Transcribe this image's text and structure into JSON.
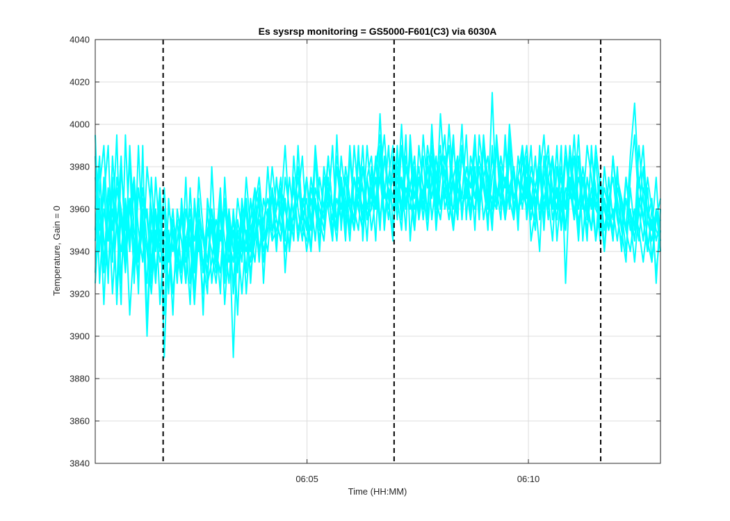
{
  "chart_data": {
    "type": "line",
    "title": "Es sysrsp monitoring = GS5000-F601(C3) via 6030A",
    "xlabel": "Time (HH:MM)",
    "ylabel": "Temperature, Gain = 0",
    "ylim": [
      3840,
      4040
    ],
    "yticks": [
      3840,
      3860,
      3880,
      3900,
      3920,
      3940,
      3960,
      3980,
      4000,
      4020,
      4040
    ],
    "xlim": [
      "06:00:13",
      "06:12:59"
    ],
    "xticks": [
      {
        "value": "06:05:00",
        "label": "06:05"
      },
      {
        "value": "06:10:00",
        "label": "06:10"
      }
    ],
    "grid": true,
    "series_color": "#00ffff",
    "vertical_markers": {
      "style": "dashed",
      "color": "#000000",
      "x": [
        "06:01:45",
        "06:06:58",
        "06:11:38"
      ]
    },
    "series_count": 8,
    "series": [
      {
        "values": [
          3995,
          3940,
          3975,
          3925,
          3985,
          3955,
          3915,
          3995,
          3945,
          3970,
          3920,
          3990,
          3905,
          3960,
          3930,
          3950,
          3910,
          3965,
          3940,
          3955,
          3930,
          3975,
          3925,
          3960,
          3945,
          3935,
          3920,
          3980,
          3940,
          3965,
          3925,
          3955,
          3890,
          3950,
          3935,
          3965,
          3940,
          3970,
          3960,
          3945,
          3980,
          3950,
          3960,
          3975,
          3930,
          3960,
          3945,
          3990,
          3955,
          3965,
          3940,
          3985,
          3950,
          3975,
          3960,
          3945,
          3995,
          3950,
          3980,
          3965,
          3955,
          3990,
          3945,
          3975,
          3985,
          3960,
          4005,
          3965,
          3990,
          3950,
          3980,
          3960,
          3995,
          3945,
          3975,
          3960,
          3985,
          3955,
          4000,
          3965,
          3985,
          3975,
          3990,
          3950,
          3980,
          3965,
          3995,
          3955,
          3975,
          3965,
          3990,
          3960,
          4015,
          3960,
          3985,
          3970,
          3990,
          3955,
          3975,
          3965,
          3985,
          3945,
          3960,
          3980,
          3950,
          3985,
          3970,
          3960,
          3990,
          3925,
          3975,
          3965,
          3995,
          3960,
          3990,
          3975,
          3945,
          3960,
          3940,
          3975,
          3955,
          3970,
          3960,
          3950,
          3985,
          4010,
          3970,
          3990,
          3955,
          3965,
          3925,
          3960
        ]
      },
      {
        "values": [
          3960,
          3985,
          3930,
          3970,
          3950,
          3995,
          3925,
          3965,
          3940,
          3975,
          3935,
          3960,
          3900,
          3950,
          3925,
          3960,
          3935,
          3945,
          3910,
          3960,
          3945,
          3925,
          3970,
          3935,
          3955,
          3910,
          3965,
          3950,
          3930,
          3960,
          3915,
          3945,
          3925,
          3955,
          3940,
          3975,
          3950,
          3960,
          3935,
          3965,
          3955,
          3980,
          3960,
          3970,
          3945,
          3975,
          3955,
          3965,
          3985,
          3950,
          3975,
          3960,
          3945,
          3980,
          3965,
          3955,
          3985,
          3970,
          3950,
          3990,
          3960,
          3975,
          3955,
          3990,
          3965,
          3980,
          3995,
          3955,
          3975,
          3990,
          3965,
          4000,
          3960,
          3985,
          3975,
          3955,
          3995,
          3970,
          3990,
          3960,
          4005,
          3975,
          3960,
          3990,
          3970,
          4000,
          3955,
          3985,
          3975,
          3960,
          3995,
          3970,
          3950,
          3990,
          3975,
          3960,
          4000,
          3975,
          3955,
          3985,
          3965,
          3990,
          3955,
          3975,
          3995,
          3965,
          3945,
          3980,
          3960,
          3990,
          3970,
          3955,
          3985,
          3945,
          3975,
          3960,
          3990,
          3970,
          3950,
          3965,
          3945,
          3980,
          3950,
          3935,
          3975,
          3995,
          3960,
          3980,
          3940,
          3955,
          3930,
          3950
        ]
      },
      {
        "values": [
          3930,
          3970,
          3990,
          3945,
          3960,
          3920,
          3980,
          3950,
          3965,
          3930,
          3990,
          3945,
          3925,
          3975,
          3940,
          3965,
          3890,
          3950,
          3920,
          3945,
          3960,
          3935,
          3945,
          3915,
          3950,
          3930,
          3960,
          3925,
          3945,
          3970,
          3930,
          3960,
          3920,
          3940,
          3955,
          3930,
          3965,
          3945,
          3970,
          3925,
          3960,
          3945,
          3975,
          3950,
          3965,
          3940,
          3985,
          3960,
          3945,
          3975,
          3955,
          3965,
          3940,
          3975,
          3960,
          3990,
          3950,
          3970,
          3945,
          3985,
          3960,
          3950,
          3980,
          3960,
          3975,
          3945,
          3990,
          3970,
          3955,
          3985,
          3960,
          3975,
          3950,
          3995,
          3965,
          3980,
          3960,
          3990,
          3975,
          3955,
          3985,
          3965,
          4000,
          3970,
          3955,
          3990,
          3965,
          3980,
          3950,
          3995,
          3975,
          3960,
          3985,
          3970,
          3955,
          3995,
          3965,
          3980,
          3950,
          3990,
          3970,
          3960,
          3985,
          3955,
          3975,
          3990,
          3960,
          3970,
          3950,
          3985,
          3965,
          3995,
          3960,
          3975,
          3955,
          3985,
          3970,
          3950,
          3980,
          3960,
          3945,
          3975,
          3960,
          3940,
          3970,
          3950,
          3990,
          3965,
          3945,
          3935,
          3960,
          3945
        ]
      },
      {
        "values": [
          3975,
          3950,
          3965,
          3990,
          3935,
          3975,
          3960,
          3940,
          3985,
          3925,
          3970,
          3950,
          3960,
          3930,
          3975,
          3945,
          3960,
          3920,
          3955,
          3940,
          3925,
          3960,
          3945,
          3930,
          3975,
          3950,
          3935,
          3960,
          3945,
          3920,
          3975,
          3940,
          3955,
          3930,
          3965,
          3945,
          3935,
          3960,
          3975,
          3950,
          3940,
          3970,
          3945,
          3960,
          3990,
          3955,
          3970,
          3945,
          3960,
          3975,
          3950,
          3990,
          3965,
          3955,
          3975,
          3945,
          3980,
          3960,
          3975,
          3950,
          3990,
          3965,
          3970,
          3945,
          3980,
          3960,
          3975,
          3995,
          3965,
          3945,
          3985,
          3970,
          3960,
          3990,
          3950,
          3975,
          3965,
          3985,
          3955,
          3975,
          3990,
          3960,
          3970,
          3995,
          3960,
          3985,
          3970,
          3955,
          3990,
          3965,
          3975,
          3950,
          3990,
          3960,
          3980,
          3955,
          3995,
          3960,
          3975,
          3960,
          3980,
          3965,
          3950,
          3990,
          3960,
          3975,
          3985,
          3945,
          3970,
          3960,
          3985,
          3955,
          3975,
          3965,
          3945,
          3990,
          3960,
          3975,
          3940,
          3965,
          3975,
          3955,
          3945,
          3965,
          3950,
          3960,
          3945,
          3970,
          3960,
          3950,
          3975,
          3940
        ]
      },
      {
        "values": [
          3945,
          3965,
          3915,
          3960,
          3940,
          3970,
          3955,
          3930,
          3965,
          3945,
          3925,
          3970,
          3955,
          3935,
          3960,
          3915,
          3950,
          3940,
          3960,
          3935,
          3955,
          3945,
          3915,
          3965,
          3940,
          3950,
          3925,
          3935,
          3955,
          3945,
          3965,
          3935,
          3950,
          3910,
          3960,
          3920,
          3950,
          3935,
          3960,
          3945,
          3955,
          3965,
          3940,
          3970,
          3960,
          3950,
          3975,
          3945,
          3965,
          3955,
          3940,
          3970,
          3960,
          3950,
          3985,
          3960,
          3945,
          3975,
          3955,
          3965,
          3950,
          3985,
          3970,
          3955,
          3960,
          3975,
          3950,
          3985,
          3965,
          3975,
          3955,
          3990,
          3960,
          3970,
          3985,
          3955,
          3970,
          3960,
          3995,
          3975,
          3960,
          3985,
          3965,
          3975,
          3955,
          3990,
          3970,
          3960,
          3980,
          3955,
          3990,
          3975,
          3960,
          3995,
          3970,
          3955,
          3985,
          3965,
          3975,
          3990,
          3955,
          3975,
          3965,
          3940,
          3985,
          3960,
          3970,
          3955,
          3980,
          3960,
          3990,
          3970,
          3945,
          3975,
          3960,
          3950,
          3970,
          3945,
          3965,
          3955,
          3985,
          3960,
          3940,
          3975,
          3955,
          3945,
          3965,
          3955,
          3975,
          3960,
          3945,
          3955
        ]
      },
      {
        "values": [
          3985,
          3925,
          3960,
          3945,
          3975,
          3915,
          3960,
          3935,
          3990,
          3950,
          3940,
          3965,
          3945,
          3925,
          3960,
          3940,
          3970,
          3935,
          3950,
          3925,
          3965,
          3940,
          3955,
          3920,
          3960,
          3945,
          3930,
          3955,
          3935,
          3965,
          3945,
          3925,
          3960,
          3935,
          3945,
          3960,
          3925,
          3955,
          3965,
          3940,
          3950,
          3970,
          3955,
          3945,
          3965,
          3940,
          3960,
          3975,
          3950,
          3945,
          3970,
          3960,
          3955,
          3945,
          3970,
          3960,
          3950,
          3985,
          3965,
          3945,
          3975,
          3960,
          3990,
          3955,
          3970,
          3960,
          3985,
          3950,
          3975,
          3965,
          3990,
          3955,
          3980,
          3965,
          3950,
          3990,
          3970,
          3960,
          3985,
          3950,
          3975,
          3995,
          3965,
          3960,
          3985,
          3955,
          3980,
          3970,
          3995,
          3960,
          3975,
          3985,
          3955,
          3970,
          3965,
          3990,
          3960,
          3980,
          3955,
          3975,
          3990,
          3960,
          3970,
          3985,
          3955,
          3975,
          3960,
          3990,
          3950,
          3970,
          3965,
          3985,
          3950,
          3975,
          3960,
          3965,
          3945,
          3975,
          3960,
          3950,
          3985,
          3965,
          3950,
          3975,
          3955,
          3935,
          3960,
          3945,
          3970,
          3935,
          3955,
          3965
        ]
      },
      {
        "values": [
          3950,
          3980,
          3945,
          3930,
          3970,
          3950,
          3985,
          3940,
          3960,
          3975,
          3950,
          3935,
          3980,
          3960,
          3945,
          3970,
          3930,
          3960,
          3950,
          3930,
          3960,
          3925,
          3955,
          3945,
          3965,
          3930,
          3950,
          3960,
          3940,
          3930,
          3960,
          3945,
          3935,
          3965,
          3950,
          3940,
          3955,
          3970,
          3940,
          3955,
          3965,
          3950,
          3955,
          3945,
          3975,
          3960,
          3950,
          3980,
          3960,
          3950,
          3965,
          3945,
          3975,
          3960,
          3985,
          3960,
          3955,
          3975,
          3960,
          3950,
          3975,
          3960,
          3950,
          3975,
          3960,
          3985,
          3955,
          3970,
          3960,
          3980,
          3965,
          3950,
          3985,
          3970,
          3960,
          3975,
          3955,
          3980,
          3965,
          3985,
          3960,
          3970,
          3955,
          3975,
          3985,
          3960,
          3970,
          3980,
          3965,
          3985,
          3970,
          3955,
          3975,
          3990,
          3960,
          3975,
          3965,
          3955,
          3985,
          3970,
          3960,
          3980,
          3970,
          3960,
          3975,
          3955,
          3985,
          3965,
          3975,
          3950,
          3985,
          3965,
          3960,
          3980,
          3965,
          3950,
          3985,
          3955,
          3970,
          3960,
          3950,
          3975,
          3965,
          3950,
          3960,
          3945,
          3975,
          3955,
          3940,
          3960,
          3950,
          3945
        ]
      },
      {
        "values": [
          3925,
          3960,
          3935,
          3965,
          3920,
          3955,
          3940,
          3960,
          3910,
          3945,
          3930,
          3955,
          3940,
          3920,
          3950,
          3935,
          3945,
          3925,
          3950,
          3940,
          3930,
          3945,
          3960,
          3930,
          3945,
          3920,
          3950,
          3940,
          3925,
          3950,
          3935,
          3960,
          3940,
          3945,
          3920,
          3950,
          3930,
          3945,
          3955,
          3935,
          3960,
          3945,
          3950,
          3960,
          3940,
          3955,
          3970,
          3950,
          3960,
          3940,
          3955,
          3965,
          3950,
          3960,
          3970,
          3950,
          3965,
          3955,
          3975,
          3960,
          3950,
          3970,
          3960,
          3975,
          3950,
          3965,
          3975,
          3955,
          3970,
          3960,
          3975,
          3955,
          3970,
          3960,
          3980,
          3960,
          3970,
          3950,
          3975,
          3965,
          3955,
          3975,
          3965,
          3950,
          3970,
          3960,
          3975,
          3965,
          3960,
          3980,
          3955,
          3970,
          3965,
          3960,
          3975,
          3955,
          3970,
          3980,
          3960,
          3965,
          3975,
          3955,
          3970,
          3960,
          3965,
          3975,
          3955,
          3970,
          3960,
          3950,
          3970,
          3960,
          3955,
          3965,
          3950,
          3970,
          3960,
          3955,
          3965,
          3950,
          3960,
          3945,
          3965,
          3950,
          3940,
          3960,
          3950,
          3935,
          3955,
          3945,
          3960,
          3940
        ]
      }
    ]
  }
}
